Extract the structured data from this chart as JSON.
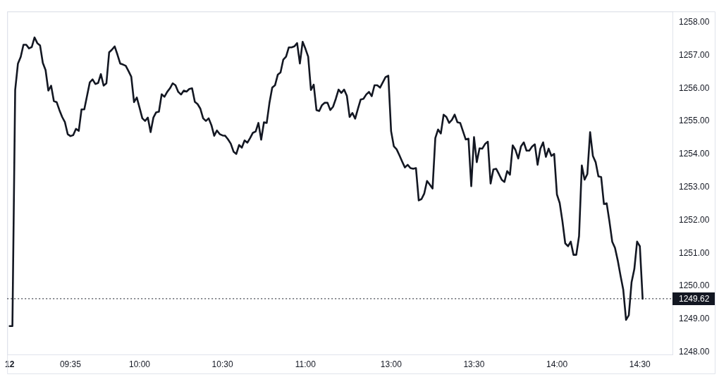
{
  "chart_data": {
    "type": "line",
    "categories": [
      "12",
      null,
      null,
      null,
      null,
      null,
      null,
      null,
      null,
      null,
      null,
      null,
      null,
      null,
      null,
      null,
      null,
      null,
      null,
      null,
      null,
      null,
      "09:35",
      null,
      null,
      null,
      null,
      null,
      null,
      null,
      null,
      null,
      null,
      null,
      null,
      null,
      null,
      null,
      null,
      null,
      null,
      null,
      null,
      null,
      null,
      null,
      null,
      "10:00",
      null,
      null,
      null,
      null,
      null,
      null,
      null,
      null,
      null,
      null,
      null,
      null,
      null,
      null,
      null,
      null,
      null,
      null,
      null,
      null,
      null,
      null,
      null,
      null,
      null,
      null,
      null,
      null,
      null,
      "10:30",
      null,
      null,
      null,
      null,
      null,
      null,
      null,
      null,
      null,
      null,
      null,
      null,
      null,
      null,
      null,
      null,
      null,
      null,
      null,
      null,
      null,
      null,
      null,
      null,
      null,
      null,
      null,
      null,
      null,
      "11:00",
      null,
      null,
      null,
      null,
      null,
      null,
      null,
      null,
      null,
      null,
      null,
      null,
      null,
      null,
      null,
      null,
      null,
      null,
      null,
      null,
      null,
      null,
      null,
      null,
      null,
      null,
      null,
      null,
      null,
      null,
      "13:00",
      null,
      null,
      null,
      null,
      null,
      null,
      null,
      null,
      null,
      null,
      null,
      null,
      null,
      null,
      null,
      null,
      null,
      null,
      null,
      null,
      null,
      null,
      null,
      null,
      null,
      null,
      null,
      null,
      null,
      "13:30",
      null,
      null,
      null,
      null,
      null,
      null,
      null,
      null,
      null,
      null,
      null,
      null,
      null,
      null,
      null,
      null,
      null,
      null,
      null,
      null,
      null,
      null,
      null,
      null,
      null,
      null,
      null,
      null,
      null,
      "14:00",
      null,
      null,
      null,
      null,
      null,
      null,
      null,
      null,
      null,
      null,
      null,
      null,
      null,
      null,
      null,
      null,
      null,
      null,
      null,
      null,
      null,
      null,
      null,
      null,
      null,
      null,
      null,
      null,
      null,
      "14:30",
      null
    ],
    "series": [
      {
        "color": "#131722",
        "values": [
          1248.79,
          1248.79,
          1255.95,
          1256.75,
          1256.95,
          1257.32,
          1257.32,
          1257.21,
          1257.25,
          1257.54,
          1257.37,
          1257.3,
          1256.77,
          1256.55,
          1255.93,
          1256.08,
          1255.61,
          1255.58,
          1255.34,
          1255.13,
          1254.97,
          1254.61,
          1254.55,
          1254.58,
          1254.77,
          1254.71,
          1255.36,
          1255.36,
          1255.77,
          1256.18,
          1256.27,
          1256.13,
          1256.16,
          1256.43,
          1256.08,
          1256.15,
          1257.09,
          1257.17,
          1257.27,
          1257.02,
          1256.75,
          1256.72,
          1256.68,
          1256.52,
          1256.35,
          1255.58,
          1255.72,
          1255.41,
          1255.09,
          1255.01,
          1255.11,
          1254.67,
          1255.11,
          1255.27,
          1255.29,
          1255.82,
          1255.74,
          1255.89,
          1256.0,
          1256.15,
          1256.09,
          1255.89,
          1255.81,
          1255.93,
          1255.9,
          1255.98,
          1256.0,
          1255.59,
          1255.52,
          1255.38,
          1255.09,
          1255.01,
          1255.09,
          1254.88,
          1254.56,
          1254.72,
          1254.61,
          1254.57,
          1254.56,
          1254.45,
          1254.32,
          1254.08,
          1254.01,
          1254.28,
          1254.2,
          1254.42,
          1254.35,
          1254.49,
          1254.65,
          1254.69,
          1254.95,
          1254.44,
          1254.97,
          1254.95,
          1255.56,
          1256.02,
          1256.09,
          1256.41,
          1256.48,
          1256.87,
          1256.96,
          1257.24,
          1257.24,
          1257.27,
          1257.37,
          1256.75,
          1257.41,
          1257.2,
          1256.96,
          1255.95,
          1256.11,
          1255.34,
          1255.31,
          1255.49,
          1255.56,
          1255.56,
          1255.34,
          1255.44,
          1255.68,
          1255.96,
          1255.86,
          1255.96,
          1255.77,
          1255.13,
          1255.25,
          1255.08,
          1255.38,
          1255.66,
          1255.68,
          1255.81,
          1255.89,
          1255.76,
          1256.09,
          1256.09,
          1256.02,
          1256.18,
          1256.34,
          1256.38,
          1254.7,
          1254.24,
          1254.15,
          1253.97,
          1253.78,
          1253.6,
          1253.68,
          1253.58,
          1253.56,
          1253.58,
          1252.6,
          1252.64,
          1252.81,
          1253.19,
          1253.08,
          1252.96,
          1254.49,
          1254.75,
          1254.63,
          1255.2,
          1255.13,
          1254.95,
          1255.04,
          1255.2,
          1254.97,
          1254.95,
          1254.7,
          1254.45,
          1254.47,
          1253.03,
          1254.52,
          1253.76,
          1254.18,
          1254.17,
          1254.31,
          1254.38,
          1253.11,
          1253.54,
          1253.56,
          1253.4,
          1253.23,
          1253.16,
          1253.49,
          1253.38,
          1254.27,
          1254.13,
          1253.87,
          1254.24,
          1254.36,
          1254.11,
          1254.11,
          1254.23,
          1254.3,
          1253.68,
          1254.17,
          1254.36,
          1253.92,
          1254.17,
          1253.95,
          1254.01,
          1252.78,
          1252.52,
          1251.96,
          1251.3,
          1251.21,
          1251.35,
          1250.95,
          1250.95,
          1251.52,
          1253.66,
          1253.23,
          1253.4,
          1254.67,
          1253.95,
          1253.76,
          1253.33,
          1253.31,
          1252.49,
          1252.51,
          1251.96,
          1251.35,
          1251.16,
          1250.78,
          1250.32,
          1249.89,
          1248.98,
          1249.12,
          1250.12,
          1250.52,
          1251.35,
          1251.21,
          1249.62
        ]
      }
    ],
    "ylim": [
      1247.93,
      1258.33
    ],
    "yticks": [
      {
        "value": 1248,
        "label": "1248.00"
      },
      {
        "value": 1249,
        "label": "1249.00"
      },
      {
        "value": 1250,
        "label": "1250.00"
      },
      {
        "value": 1251,
        "label": "1251.00"
      },
      {
        "value": 1252,
        "label": "1252.00"
      },
      {
        "value": 1253,
        "label": "1253.00"
      },
      {
        "value": 1254,
        "label": "1254.00"
      },
      {
        "value": 1255,
        "label": "1255.00"
      },
      {
        "value": 1256,
        "label": "1256.00"
      },
      {
        "value": 1257,
        "label": "1257.00"
      },
      {
        "value": 1258,
        "label": "1258.00"
      }
    ],
    "ref_lines": [
      {
        "axis": "y",
        "value": 1249.62,
        "label": "1249.62",
        "color": "#131722",
        "line_style": "dotted"
      }
    ],
    "marker": "none",
    "line_style": "solid"
  }
}
